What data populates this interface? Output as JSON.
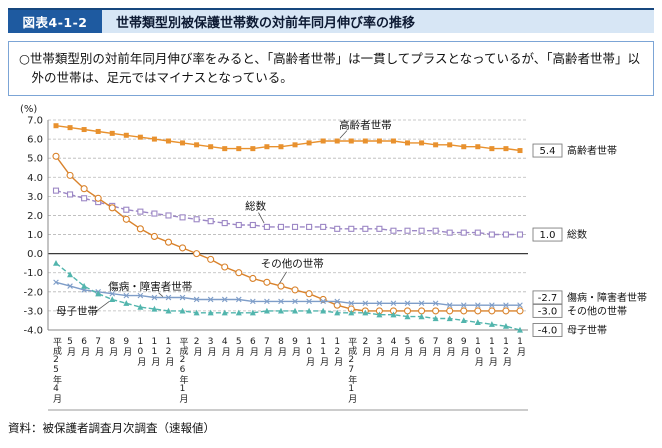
{
  "header": {
    "figure_label": "図表4-1-2",
    "title": "世帯類型別被保護世帯数の対前年同月伸び率の推移"
  },
  "summary": {
    "text": "○世帯類型別の対前年同月伸び率をみると、「高齢者世帯」は一貫してプラスとなっているが、「高齢者世帯」以外の世帯は、足元ではマイナスとなっている。"
  },
  "footer": {
    "source": "資料：被保護者調査月次調査（速報値）"
  },
  "chart_data": {
    "type": "line",
    "ylabel": "(%)",
    "ylim": [
      -4.0,
      7.0
    ],
    "ytick_step": 1.0,
    "grid": "horizontal-dashed",
    "categories": [
      "平成25年4月",
      "5月",
      "6月",
      "7月",
      "8月",
      "9月",
      "10月",
      "11月",
      "12月",
      "平成26年1月",
      "2月",
      "3月",
      "4月",
      "5月",
      "6月",
      "7月",
      "8月",
      "9月",
      "10月",
      "11月",
      "12月",
      "平成27年1月",
      "2月",
      "3月",
      "4月",
      "5月",
      "6月",
      "7月",
      "8月",
      "9月",
      "10月",
      "11月",
      "12月",
      "1月"
    ],
    "series": [
      {
        "name": "高齢者世帯",
        "color": "#E8912E",
        "marker": "square-filled",
        "line_style": "solid",
        "end_label": "5.4",
        "values": [
          6.7,
          6.6,
          6.5,
          6.4,
          6.3,
          6.2,
          6.1,
          6.0,
          5.9,
          5.8,
          5.7,
          5.6,
          5.5,
          5.5,
          5.5,
          5.6,
          5.6,
          5.7,
          5.8,
          5.9,
          5.9,
          5.9,
          5.9,
          5.9,
          5.9,
          5.8,
          5.8,
          5.7,
          5.7,
          5.6,
          5.6,
          5.5,
          5.5,
          5.4
        ]
      },
      {
        "name": "総数",
        "color": "#9C87C5",
        "marker": "square-open",
        "line_style": "dashed",
        "end_label": "1.0",
        "values": [
          3.3,
          3.1,
          2.9,
          2.7,
          2.5,
          2.3,
          2.2,
          2.1,
          2.0,
          1.9,
          1.8,
          1.7,
          1.6,
          1.5,
          1.5,
          1.4,
          1.4,
          1.4,
          1.4,
          1.4,
          1.3,
          1.3,
          1.3,
          1.3,
          1.2,
          1.2,
          1.2,
          1.2,
          1.1,
          1.1,
          1.1,
          1.0,
          1.0,
          1.0
        ]
      },
      {
        "name": "その他の世帯",
        "color": "#D9822B",
        "marker": "circle-open",
        "line_style": "solid",
        "end_label": "-3.0",
        "values": [
          5.1,
          4.1,
          3.4,
          2.9,
          2.4,
          1.8,
          1.3,
          0.9,
          0.6,
          0.3,
          0.0,
          -0.3,
          -0.7,
          -1.0,
          -1.3,
          -1.5,
          -1.7,
          -1.9,
          -2.1,
          -2.4,
          -2.7,
          -2.9,
          -3.0,
          -3.0,
          -3.0,
          -3.0,
          -3.0,
          -3.0,
          -3.0,
          -3.0,
          -3.0,
          -3.0,
          -3.0,
          -3.0
        ]
      },
      {
        "name": "傷病・障害者世帯",
        "color": "#7E9DC8",
        "marker": "x",
        "line_style": "solid",
        "end_label": "-2.7",
        "values": [
          -1.5,
          -1.7,
          -1.9,
          -2.0,
          -2.1,
          -2.2,
          -2.2,
          -2.3,
          -2.3,
          -2.3,
          -2.4,
          -2.4,
          -2.4,
          -2.4,
          -2.5,
          -2.5,
          -2.5,
          -2.5,
          -2.5,
          -2.5,
          -2.5,
          -2.6,
          -2.6,
          -2.6,
          -2.6,
          -2.6,
          -2.6,
          -2.6,
          -2.7,
          -2.7,
          -2.7,
          -2.7,
          -2.7,
          -2.7
        ]
      },
      {
        "name": "母子世帯",
        "color": "#52B5AD",
        "marker": "triangle-filled",
        "line_style": "dashed",
        "end_label": "-4.0",
        "values": [
          -0.5,
          -1.1,
          -1.7,
          -2.1,
          -2.4,
          -2.6,
          -2.8,
          -2.9,
          -3.0,
          -3.0,
          -3.1,
          -3.1,
          -3.1,
          -3.1,
          -3.1,
          -3.0,
          -3.0,
          -3.0,
          -3.0,
          -3.0,
          -3.1,
          -3.1,
          -3.1,
          -3.2,
          -3.2,
          -3.3,
          -3.3,
          -3.4,
          -3.4,
          -3.5,
          -3.6,
          -3.7,
          -3.8,
          -4.0
        ]
      }
    ],
    "annotations": [
      {
        "text": "高齢者世帯",
        "xi": 22,
        "v": 6.55,
        "anchor": "middle",
        "leader": [
          20.7,
          6.45,
          20.2,
          6.05
        ]
      },
      {
        "text": "総数",
        "xi": 14.2,
        "v": 2.3,
        "anchor": "middle",
        "leader": [
          14.4,
          2.15,
          14.8,
          1.6
        ]
      },
      {
        "text": "その他の世帯",
        "xi": 16.8,
        "v": -0.7,
        "anchor": "middle",
        "leader": [
          16.4,
          -0.95,
          15.9,
          -1.55
        ]
      },
      {
        "text": "傷病・障害者世帯",
        "xi": 6.7,
        "v": -1.9,
        "anchor": "middle",
        "leader": [
          7.3,
          -2.05,
          7.6,
          -2.25
        ]
      },
      {
        "text": "母子世帯",
        "xi": 0,
        "v": -3.2,
        "anchor": "start",
        "leader": [
          2.8,
          -3.05,
          3.8,
          -2.5
        ]
      }
    ],
    "legend_position": "right-edge-labels"
  }
}
